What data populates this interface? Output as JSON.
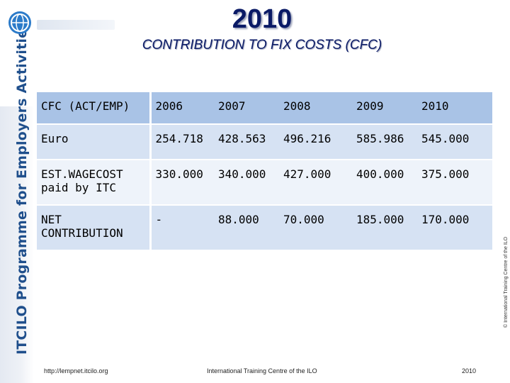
{
  "header": {
    "year_title": "2010",
    "subtitle": "CONTRIBUTION TO FIX COSTS (CFC)"
  },
  "sidebar": {
    "vertical_text": "ITCILO Programme for Employers Activities"
  },
  "right_note": "© International Training Centre of the ILO",
  "table": {
    "headers": [
      "CFC (ACT/EMP)",
      "2006",
      "2007",
      "2008",
      "2009",
      "2010"
    ],
    "rows": [
      {
        "label": "Euro",
        "values": [
          "254.718",
          "428.563",
          "496.216",
          "585.986",
          "545.000"
        ]
      },
      {
        "label": "EST.WAGECOST paid by ITC",
        "values": [
          "330.000",
          "340.000",
          "427.000",
          "400.000",
          "375.000"
        ]
      },
      {
        "label": "NET CONTRIBUTION",
        "values": [
          "-",
          "88.000",
          "70.000",
          "185.000",
          "170.000"
        ]
      }
    ]
  },
  "footer": {
    "url": "http://lempnet.itcilo.org",
    "center": "International Training Centre of the ILO",
    "right": "2010"
  },
  "colors": {
    "title": "#0a1a66",
    "header_row": "#a9c3e6",
    "row_dark": "#d6e2f3",
    "row_light": "#eef3fa",
    "side_text": "#1f4f8c"
  }
}
